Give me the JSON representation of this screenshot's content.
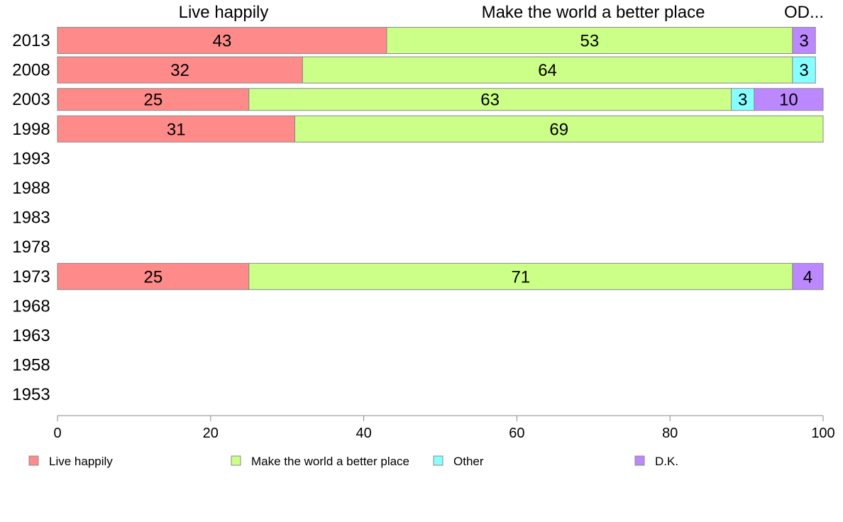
{
  "chart_data": {
    "type": "bar",
    "orientation": "horizontal",
    "stacked": true,
    "categories": [
      "2013",
      "2008",
      "2003",
      "1998",
      "1993",
      "1988",
      "1983",
      "1978",
      "1973",
      "1968",
      "1963",
      "1958",
      "1953"
    ],
    "series": [
      {
        "name": "Live happily",
        "color": "#ff8a8a",
        "values": [
          43,
          32,
          25,
          31,
          null,
          null,
          null,
          null,
          25,
          null,
          null,
          null,
          null
        ]
      },
      {
        "name": "Make the world a better place",
        "color": "#ccff88",
        "values": [
          53,
          64,
          63,
          69,
          null,
          null,
          null,
          null,
          71,
          null,
          null,
          null,
          null
        ]
      },
      {
        "name": "Other",
        "color": "#88ffff",
        "values": [
          0,
          3,
          3,
          0,
          null,
          null,
          null,
          null,
          0,
          null,
          null,
          null,
          null
        ]
      },
      {
        "name": "D.K.",
        "color": "#bb88ff",
        "values": [
          3,
          0,
          10,
          0,
          null,
          null,
          null,
          null,
          4,
          null,
          null,
          null,
          null
        ]
      }
    ],
    "top_labels": [
      "Live happily",
      "Make the world a better place",
      "OD..."
    ],
    "xlim": [
      0,
      100
    ],
    "xticks": [
      0,
      20,
      40,
      60,
      80,
      100
    ],
    "grid": false,
    "legend_position": "bottom"
  }
}
